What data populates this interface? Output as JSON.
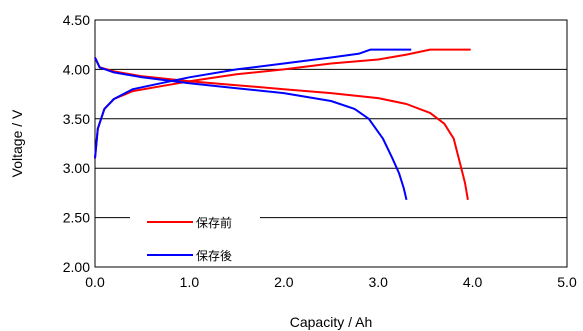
{
  "chart_data": {
    "type": "line",
    "xlabel": "Capacity / Ah",
    "ylabel": "Voltage / V",
    "xlim": [
      0,
      5
    ],
    "ylim": [
      2,
      4.5
    ],
    "x_ticks": [
      0,
      1,
      2,
      3,
      4,
      5
    ],
    "y_ticks": [
      2,
      2.5,
      3,
      3.5,
      4,
      4.5
    ],
    "x_tick_labels": [
      "0.0",
      "1.0",
      "2.0",
      "3.0",
      "4.0",
      "5.0"
    ],
    "y_tick_labels": [
      "2.00",
      "2.50",
      "3.00",
      "3.50",
      "4.00",
      "4.50"
    ],
    "grid": "horizontal",
    "legend": {
      "position": "bottom-left"
    },
    "series": [
      {
        "name": "保存前",
        "color": "#ff0000",
        "segments": [
          {
            "label": "charge",
            "x": [
              0.0,
              0.03,
              0.1,
              0.2,
              0.4,
              0.7,
              1.0,
              1.5,
              2.0,
              2.5,
              3.0,
              3.3,
              3.55,
              3.98
            ],
            "y": [
              3.1,
              3.4,
              3.6,
              3.7,
              3.78,
              3.83,
              3.88,
              3.95,
              4.0,
              4.06,
              4.1,
              4.15,
              4.2,
              4.2
            ]
          },
          {
            "label": "discharge",
            "x": [
              0.0,
              0.05,
              0.2,
              0.5,
              1.0,
              1.5,
              2.0,
              2.5,
              3.0,
              3.3,
              3.55,
              3.7,
              3.8,
              3.88,
              3.92,
              3.95
            ],
            "y": [
              4.12,
              4.02,
              3.98,
              3.93,
              3.88,
              3.84,
              3.8,
              3.76,
              3.71,
              3.65,
              3.56,
              3.45,
              3.3,
              3.0,
              2.85,
              2.68
            ]
          }
        ]
      },
      {
        "name": "保存後",
        "color": "#0000ff",
        "segments": [
          {
            "label": "charge",
            "x": [
              0.0,
              0.03,
              0.1,
              0.2,
              0.4,
              0.7,
              1.0,
              1.5,
              2.0,
              2.5,
              2.8,
              2.92,
              3.35
            ],
            "y": [
              3.1,
              3.4,
              3.6,
              3.7,
              3.8,
              3.86,
              3.92,
              4.0,
              4.06,
              4.12,
              4.16,
              4.2,
              4.2
            ]
          },
          {
            "label": "discharge",
            "x": [
              0.0,
              0.05,
              0.2,
              0.5,
              1.0,
              1.5,
              2.0,
              2.5,
              2.75,
              2.9,
              3.05,
              3.15,
              3.22,
              3.27,
              3.3
            ],
            "y": [
              4.12,
              4.02,
              3.97,
              3.92,
              3.86,
              3.81,
              3.76,
              3.68,
              3.6,
              3.5,
              3.3,
              3.1,
              2.95,
              2.8,
              2.68
            ]
          }
        ]
      }
    ]
  }
}
